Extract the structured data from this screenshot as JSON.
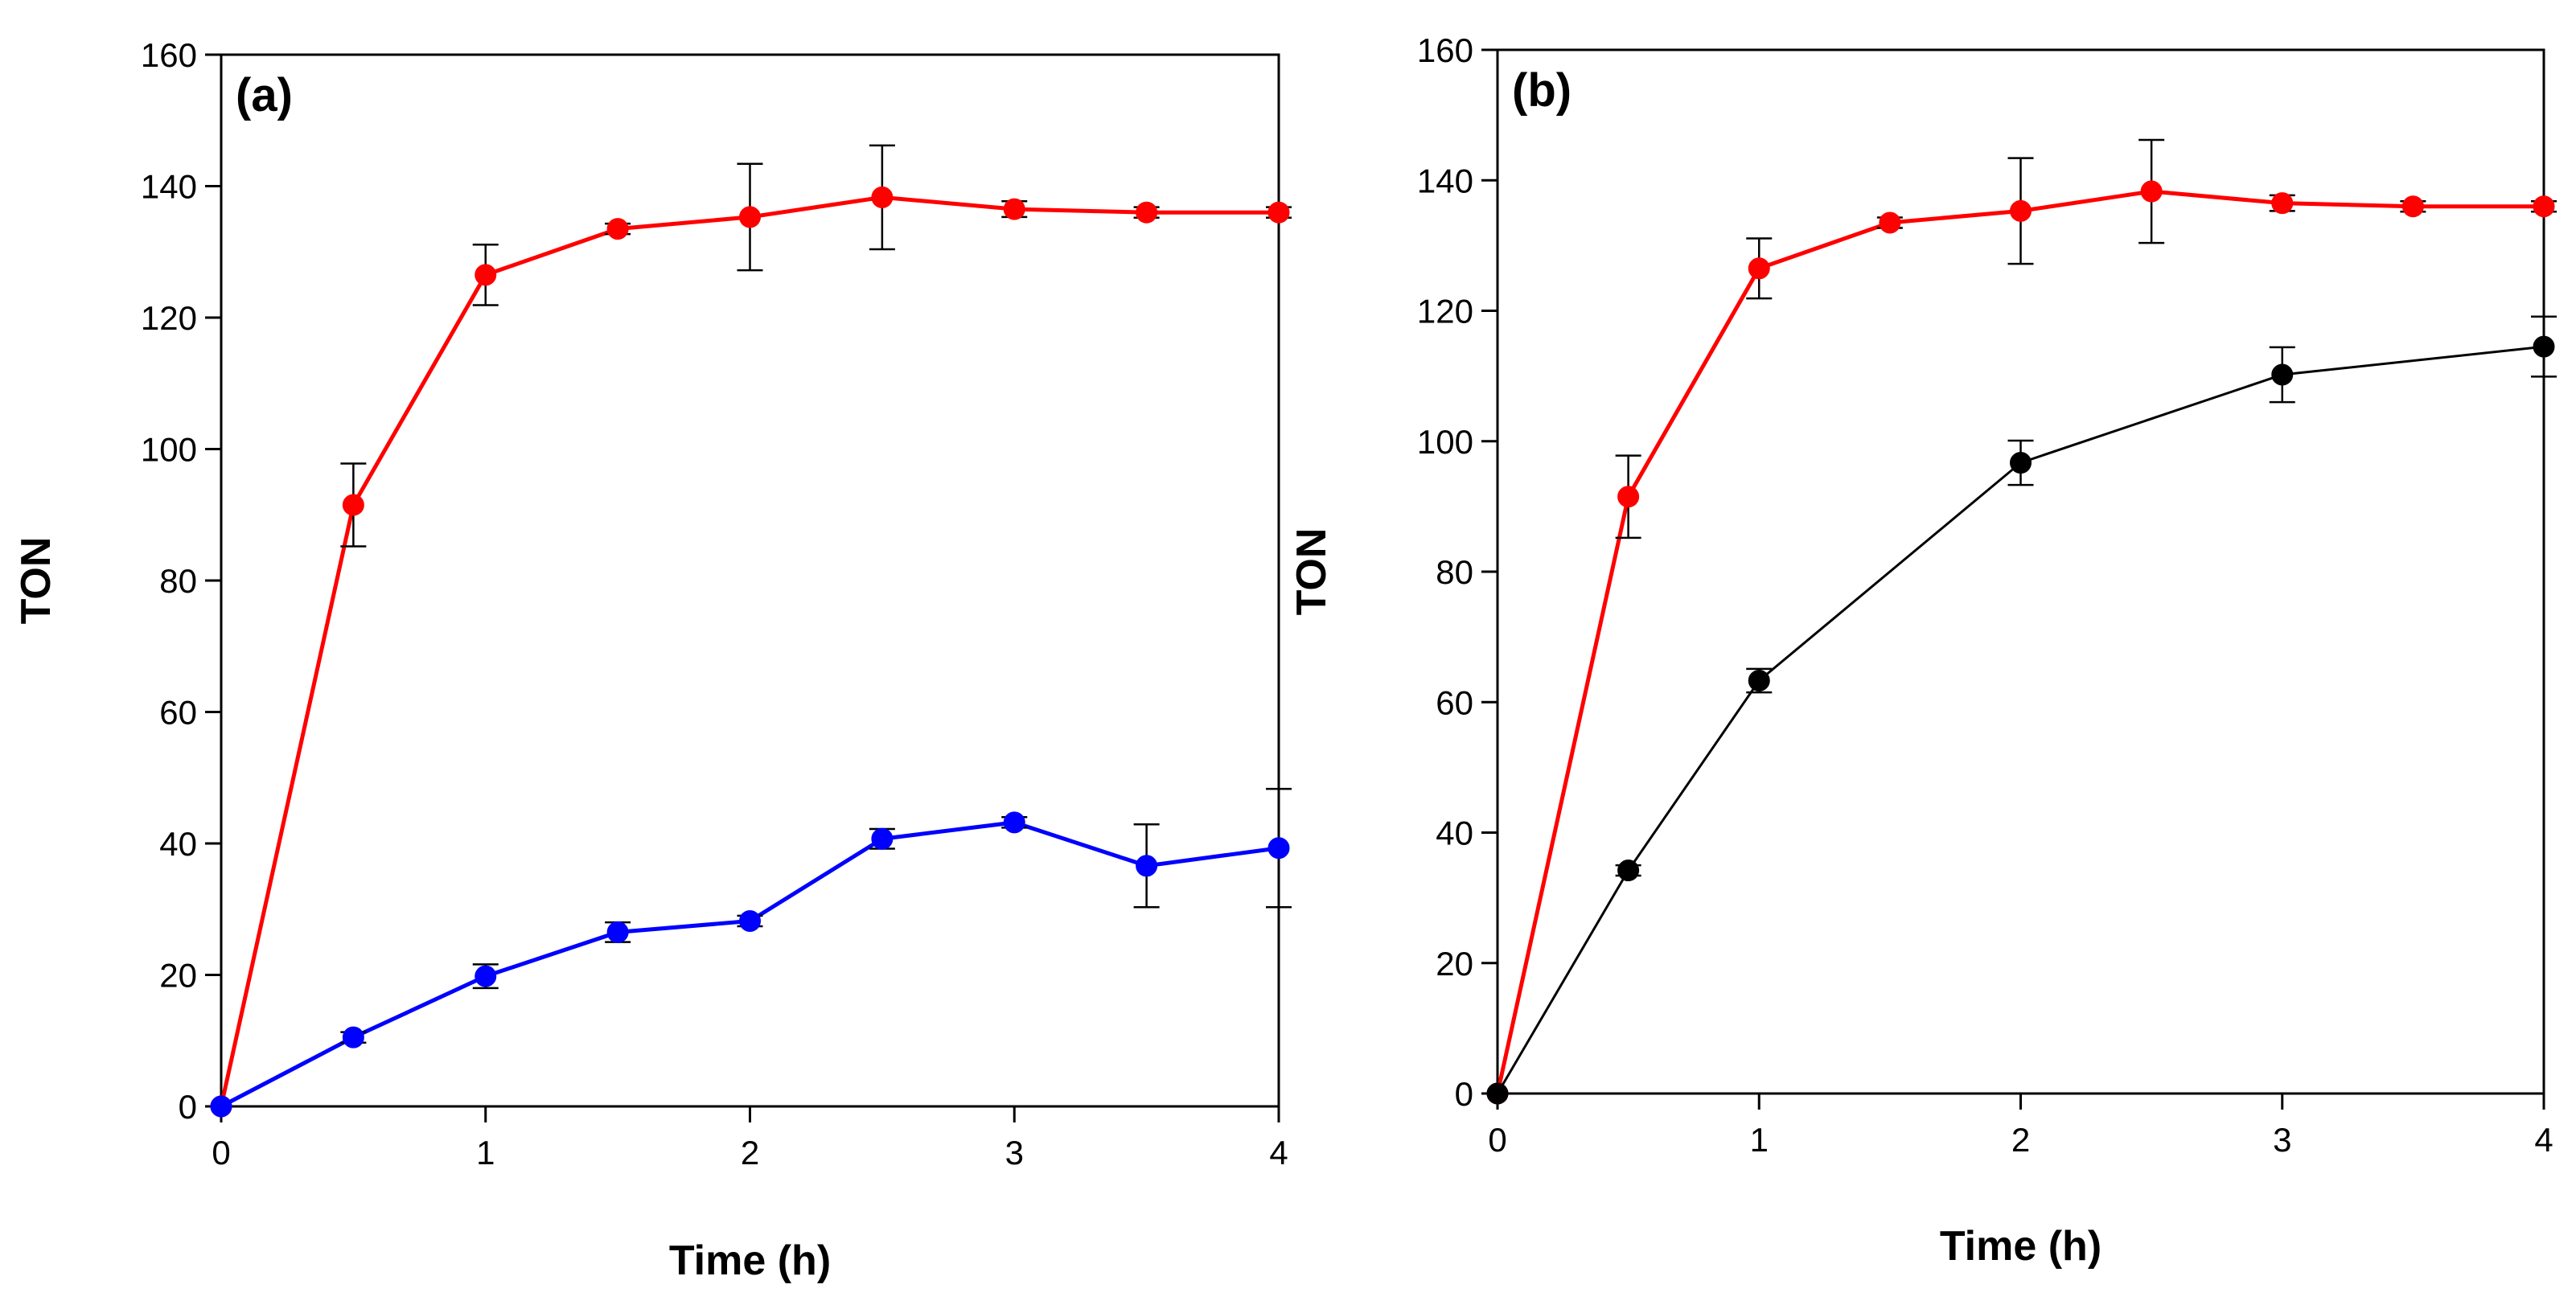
{
  "chart_data": [
    {
      "type": "line",
      "panel_label": "(a)",
      "xlabel": "Time (h)",
      "ylabel": "TON",
      "xlim": [
        0,
        4
      ],
      "ylim": [
        0,
        160
      ],
      "xticks": [
        0,
        1,
        2,
        3,
        4
      ],
      "yticks": [
        0,
        20,
        40,
        60,
        80,
        100,
        120,
        140,
        160
      ],
      "xtick_labels": [
        "0",
        "1",
        "2",
        "3",
        "4"
      ],
      "ytick_labels": [
        "0",
        "20",
        "40",
        "60",
        "80",
        "100",
        "120",
        "140",
        "160"
      ],
      "grid": false,
      "series": [
        {
          "name": "red",
          "color": "#ff0000",
          "x": [
            0,
            0.5,
            1,
            1.5,
            2,
            2.5,
            3,
            3.5,
            4
          ],
          "y": [
            0,
            91.5,
            126.5,
            133.5,
            135.3,
            138.3,
            136.5,
            136,
            136
          ],
          "err": [
            0,
            6.3,
            4.6,
            0.8,
            8.1,
            7.9,
            1.2,
            0.8,
            0.8
          ]
        },
        {
          "name": "blue",
          "color": "#0000ff",
          "x": [
            0,
            0.5,
            1,
            1.5,
            2,
            2.5,
            3,
            3.5,
            4
          ],
          "y": [
            0,
            10.5,
            19.8,
            26.5,
            28.2,
            40.7,
            43.2,
            36.6,
            39.3
          ],
          "err": [
            0,
            0.8,
            1.8,
            1.5,
            0.8,
            1.5,
            0.8,
            6.3,
            9.0
          ]
        }
      ]
    },
    {
      "type": "line",
      "panel_label": "(b)",
      "xlabel": "Time (h)",
      "ylabel": "TON",
      "xlim": [
        0,
        4
      ],
      "ylim": [
        0,
        160
      ],
      "xticks": [
        0,
        1,
        2,
        3,
        4
      ],
      "yticks": [
        0,
        20,
        40,
        60,
        80,
        100,
        120,
        140,
        160
      ],
      "xtick_labels": [
        "0",
        "1",
        "2",
        "3",
        "4"
      ],
      "ytick_labels": [
        "0",
        "20",
        "40",
        "60",
        "80",
        "100",
        "120",
        "140",
        "160"
      ],
      "grid": false,
      "series": [
        {
          "name": "red",
          "color": "#ff0000",
          "x": [
            0,
            0.5,
            1,
            1.5,
            2,
            2.5,
            3,
            3.5,
            4
          ],
          "y": [
            0,
            91.5,
            126.5,
            133.5,
            135.3,
            138.3,
            136.5,
            136,
            136
          ],
          "err": [
            0,
            6.3,
            4.6,
            0.8,
            8.1,
            7.9,
            1.2,
            0.8,
            0.8
          ]
        },
        {
          "name": "black",
          "color": "#000000",
          "x": [
            0,
            0.5,
            1,
            2,
            3,
            4
          ],
          "y": [
            0,
            34.2,
            63.3,
            96.7,
            110.2,
            114.5
          ],
          "err": [
            0,
            0.8,
            1.8,
            3.4,
            4.2,
            4.6
          ]
        }
      ]
    }
  ]
}
